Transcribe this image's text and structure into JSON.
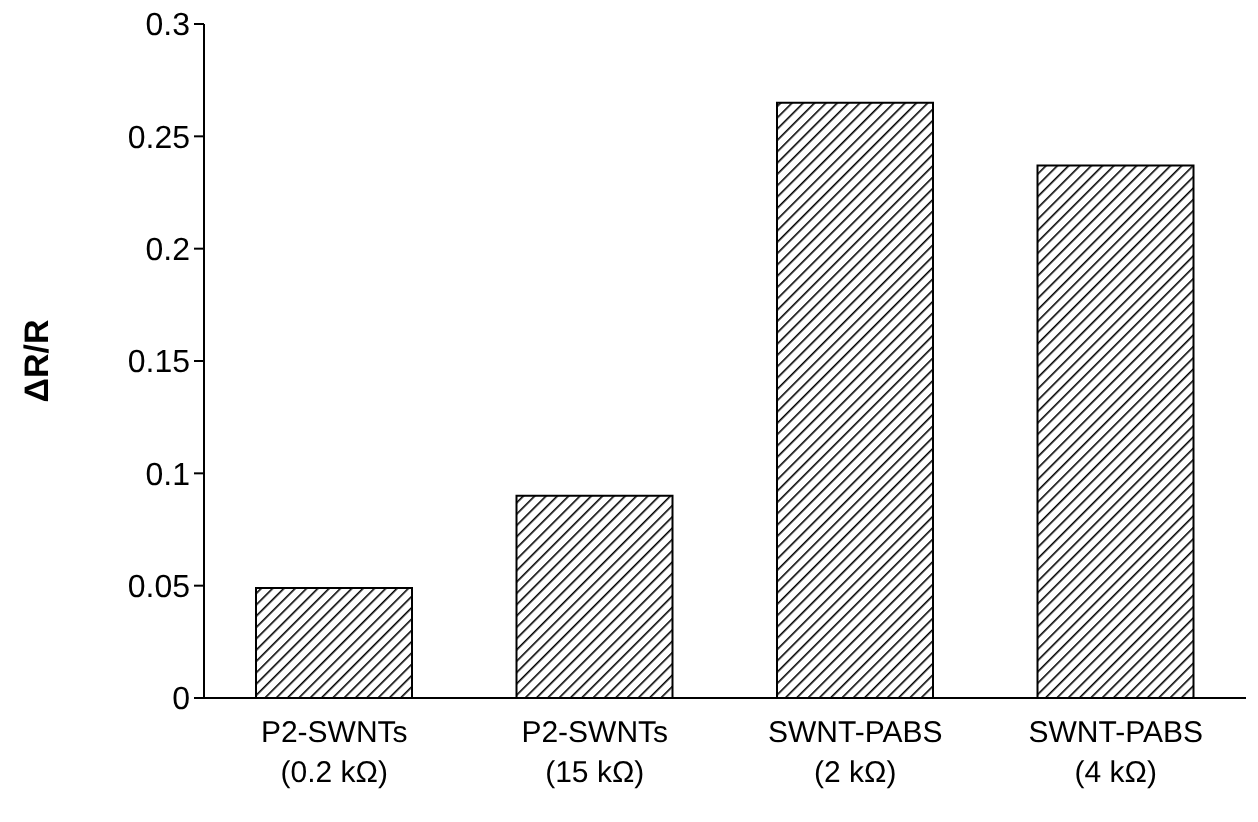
{
  "chart_data": {
    "type": "bar",
    "ylabel": "ΔR/R",
    "categories": [
      "P2-SWNTs (0.2 kΩ)",
      "P2-SWNTs (15 kΩ)",
      "SWNT-PABS (2 kΩ)",
      "SWNT-PABS (4 kΩ)"
    ],
    "values": [
      0.049,
      0.09,
      0.265,
      0.237
    ],
    "color": "#000000",
    "ylim": [
      0,
      0.3
    ],
    "yticks": [
      0,
      0.05,
      0.1,
      0.15,
      0.2,
      0.25,
      0.3
    ],
    "grid": false,
    "legend": false
  }
}
